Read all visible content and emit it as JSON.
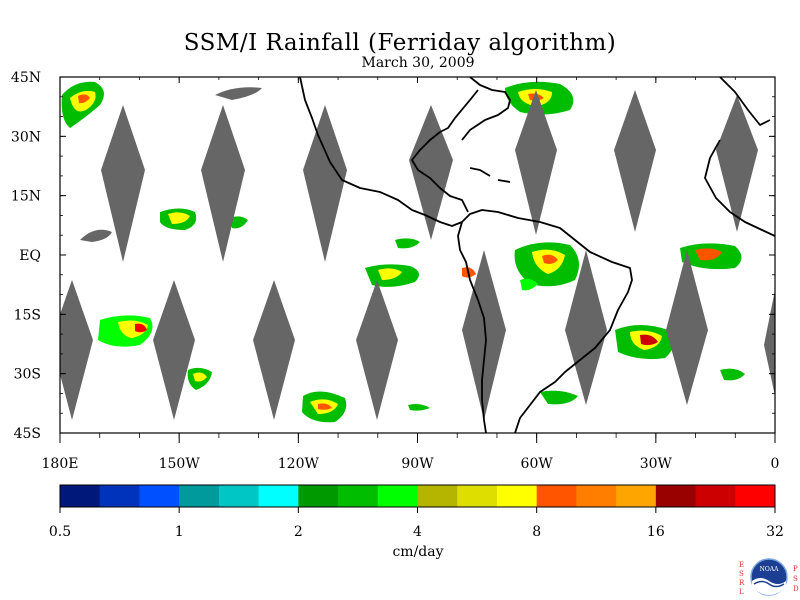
{
  "map": {
    "title": "SSM/I Rainfall (Ferriday algorithm)",
    "date": "March 30, 2009",
    "lat_labels": [
      "45N",
      "30N",
      "15N",
      "EQ",
      "15S",
      "30S",
      "45S"
    ],
    "lat_values": [
      45,
      30,
      15,
      0,
      -15,
      -30,
      -45
    ],
    "lon_labels": [
      "180E",
      "150W",
      "120W",
      "90W",
      "60W",
      "30W",
      "0"
    ],
    "lon_values": [
      -180,
      -150,
      -120,
      -90,
      -60,
      -30,
      0
    ],
    "extent": {
      "lon": [
        -180,
        0
      ],
      "lat": [
        -45,
        45
      ]
    },
    "colors": {
      "gap_swath": "#666666",
      "coastline": "#000000",
      "background": "#ffffff"
    }
  },
  "colorbar": {
    "unit_label": "cm/day",
    "tick_labels": [
      "0.5",
      "1",
      "2",
      "4",
      "8",
      "16",
      "32"
    ],
    "colors": [
      "#00187a",
      "#0033bb",
      "#0050ff",
      "#00999c",
      "#00c6c6",
      "#00ffff",
      "#009900",
      "#00bd00",
      "#00ff00",
      "#b5b500",
      "#dede00",
      "#ffff00",
      "#ff5500",
      "#ff7e00",
      "#ffa500",
      "#990000",
      "#cc0000",
      "#ff0000"
    ]
  },
  "logo": {
    "left_letters": "ESRL",
    "right_letters": "PSD",
    "emblem_text": "NOAA"
  }
}
